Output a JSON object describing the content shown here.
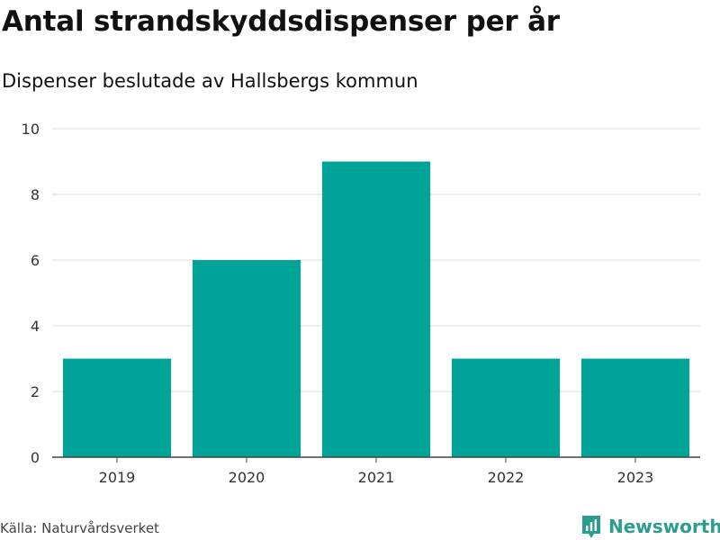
{
  "header": {
    "title": "Antal strandskyddsdispenser per år",
    "subtitle": "Dispenser beslutade av Hallsbergs kommun"
  },
  "footer": {
    "source": "Källa: Naturvårdsverket",
    "brand": "Newsworthy",
    "brand_color": "#2a9d8f",
    "brand_icon": "bar-chart-icon"
  },
  "chart_data": {
    "type": "bar",
    "title": "Antal strandskyddsdispenser per år",
    "subtitle": "Dispenser beslutade av Hallsbergs kommun",
    "categories": [
      "2019",
      "2020",
      "2021",
      "2022",
      "2023"
    ],
    "values": [
      3,
      6,
      9,
      3,
      3
    ],
    "xlabel": "",
    "ylabel": "",
    "ylim": [
      0,
      10
    ],
    "yticks": [
      0,
      2,
      4,
      6,
      8,
      10
    ],
    "grid": true,
    "bar_color": "#00a398",
    "source": "Källa: Naturvårdsverket"
  }
}
